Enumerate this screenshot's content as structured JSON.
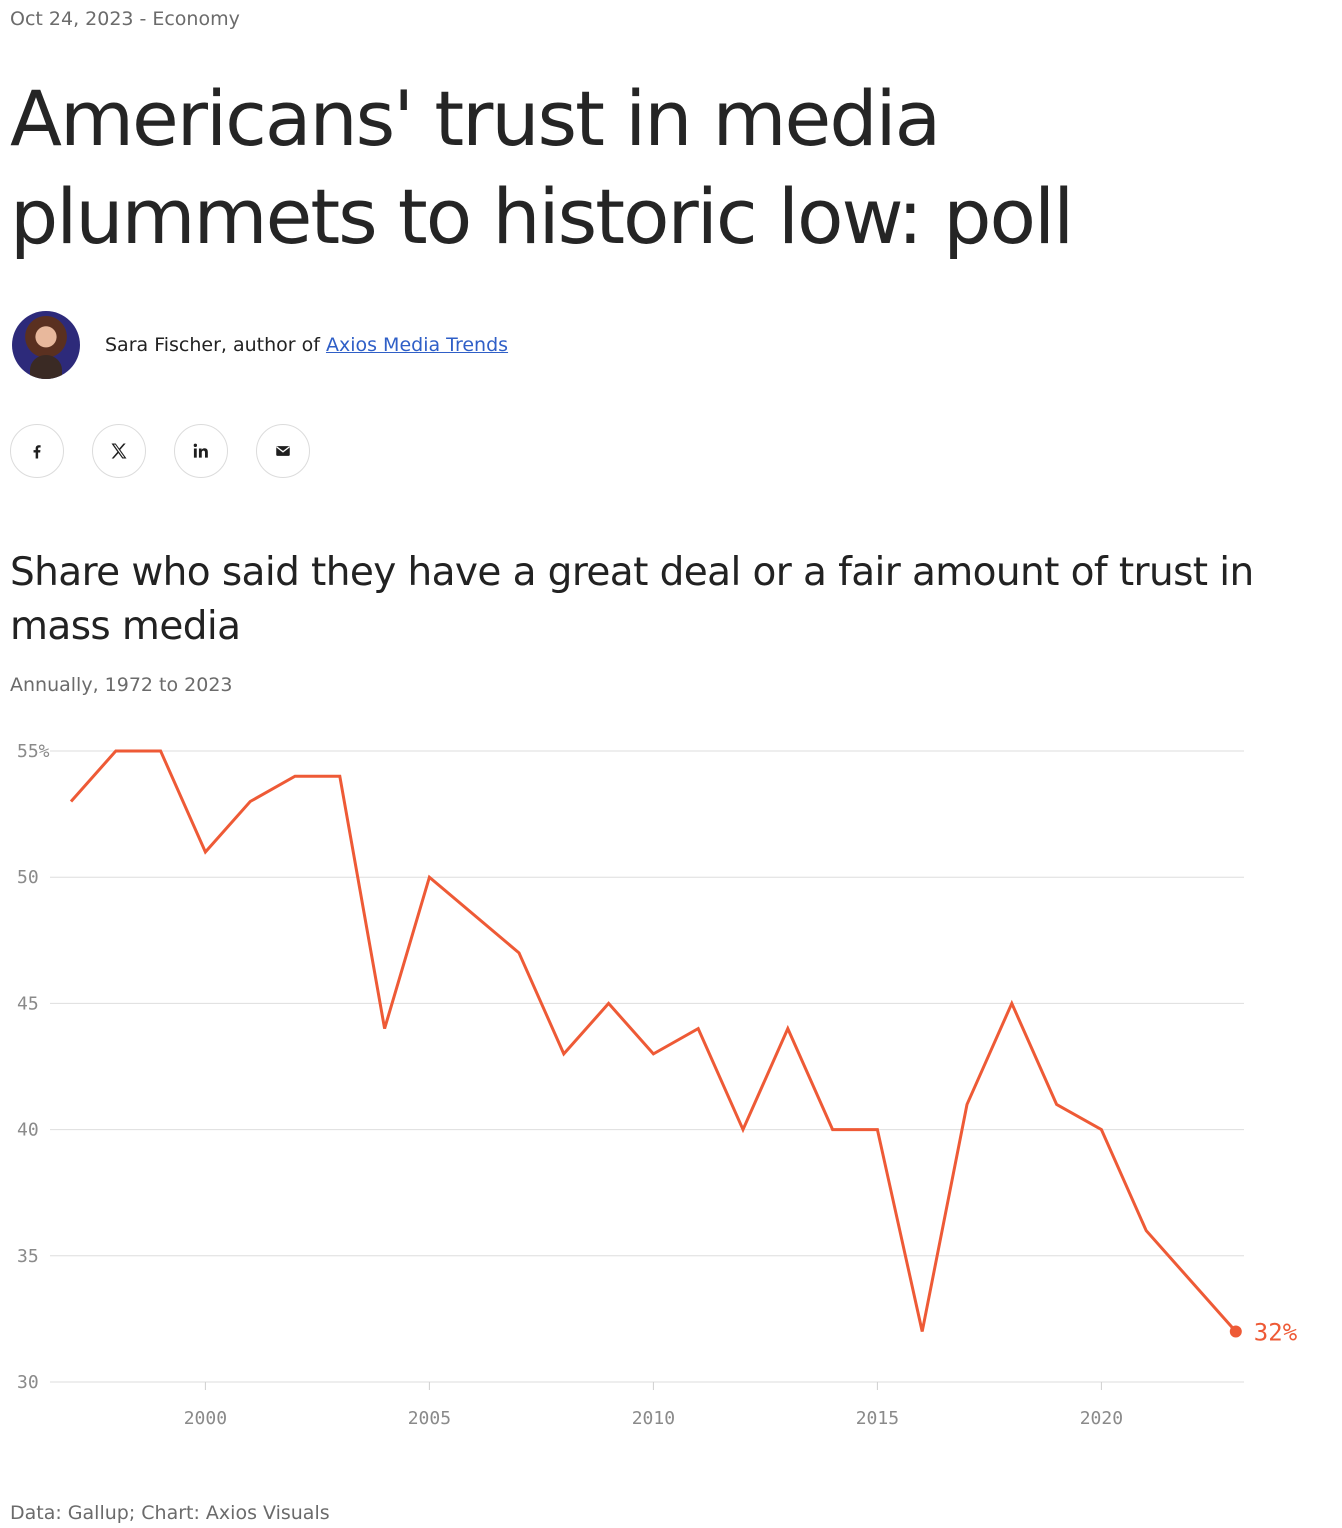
{
  "article": {
    "date": "Oct 24, 2023",
    "separator": "-",
    "section": "Economy",
    "headline": "Americans' trust in media plummets to historic low: poll",
    "author_text": "Sara Fischer, author of",
    "author_link": "Axios Media Trends"
  },
  "share_icons": [
    "facebook-icon",
    "x-icon",
    "linkedin-icon",
    "email-icon"
  ],
  "chart_data": {
    "type": "line",
    "title": "Share who said they have a great deal or a fair amount of trust in mass media",
    "subtitle": "Annually, 1972 to 2023",
    "source": "Data: Gallup; Chart: Axios Visuals",
    "x": [
      1997,
      1998,
      1999,
      2000,
      2001,
      2002,
      2003,
      2004,
      2005,
      2007,
      2008,
      2009,
      2010,
      2011,
      2012,
      2013,
      2014,
      2015,
      2016,
      2017,
      2018,
      2019,
      2020,
      2021,
      2023
    ],
    "series": [
      {
        "values": [
          53,
          55,
          55,
          51,
          53,
          54,
          54,
          44,
          50,
          47,
          43,
          45,
          43,
          44,
          40,
          44,
          40,
          40,
          32,
          41,
          45,
          41,
          40,
          36,
          32
        ]
      }
    ],
    "ylim": [
      30,
      55
    ],
    "yticks": [
      "55%",
      "50",
      "45",
      "40",
      "35",
      "30"
    ],
    "xticks": [
      "2000",
      "2005",
      "2010",
      "2015",
      "2020"
    ],
    "end_label": "32%",
    "line_color": "#ee5a36",
    "grid": true
  }
}
